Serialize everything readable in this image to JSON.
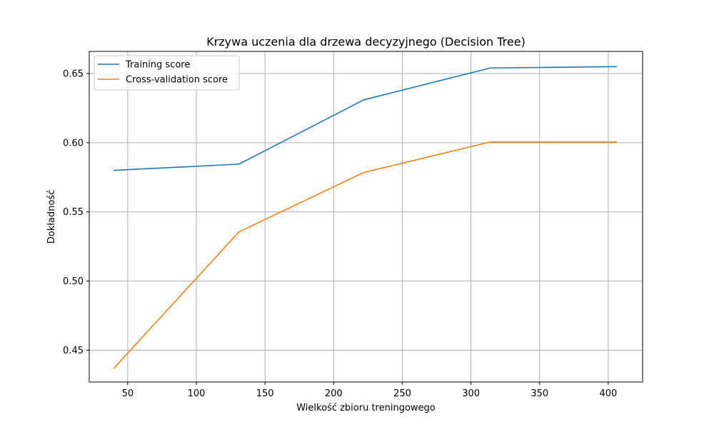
{
  "chart_data": {
    "type": "line",
    "title": "Krzywa uczenia dla drzewa decyzyjnego (Decision Tree)",
    "xlabel": "Wielkość zbioru treningowego",
    "ylabel": "Dokładność",
    "xlim": [
      22,
      425
    ],
    "ylim": [
      0.427,
      0.666
    ],
    "xticks": [
      50,
      100,
      150,
      200,
      250,
      300,
      350,
      400
    ],
    "xtick_labels": [
      "50",
      "100",
      "150",
      "200",
      "250",
      "300",
      "350",
      "400"
    ],
    "yticks": [
      0.45,
      0.5,
      0.55,
      0.6,
      0.65
    ],
    "ytick_labels": [
      "0.45",
      "0.50",
      "0.55",
      "0.60",
      "0.65"
    ],
    "grid": true,
    "legend_position": "top-left",
    "x": [
      40,
      131,
      222,
      314,
      406
    ],
    "series": [
      {
        "name": "Training score",
        "color": "#1f77b4",
        "values": [
          0.58,
          0.5845,
          0.631,
          0.654,
          0.655
        ]
      },
      {
        "name": "Cross-validation score",
        "color": "#ff7f0e",
        "values": [
          0.437,
          0.5355,
          0.5785,
          0.6005,
          0.6005
        ]
      }
    ]
  }
}
